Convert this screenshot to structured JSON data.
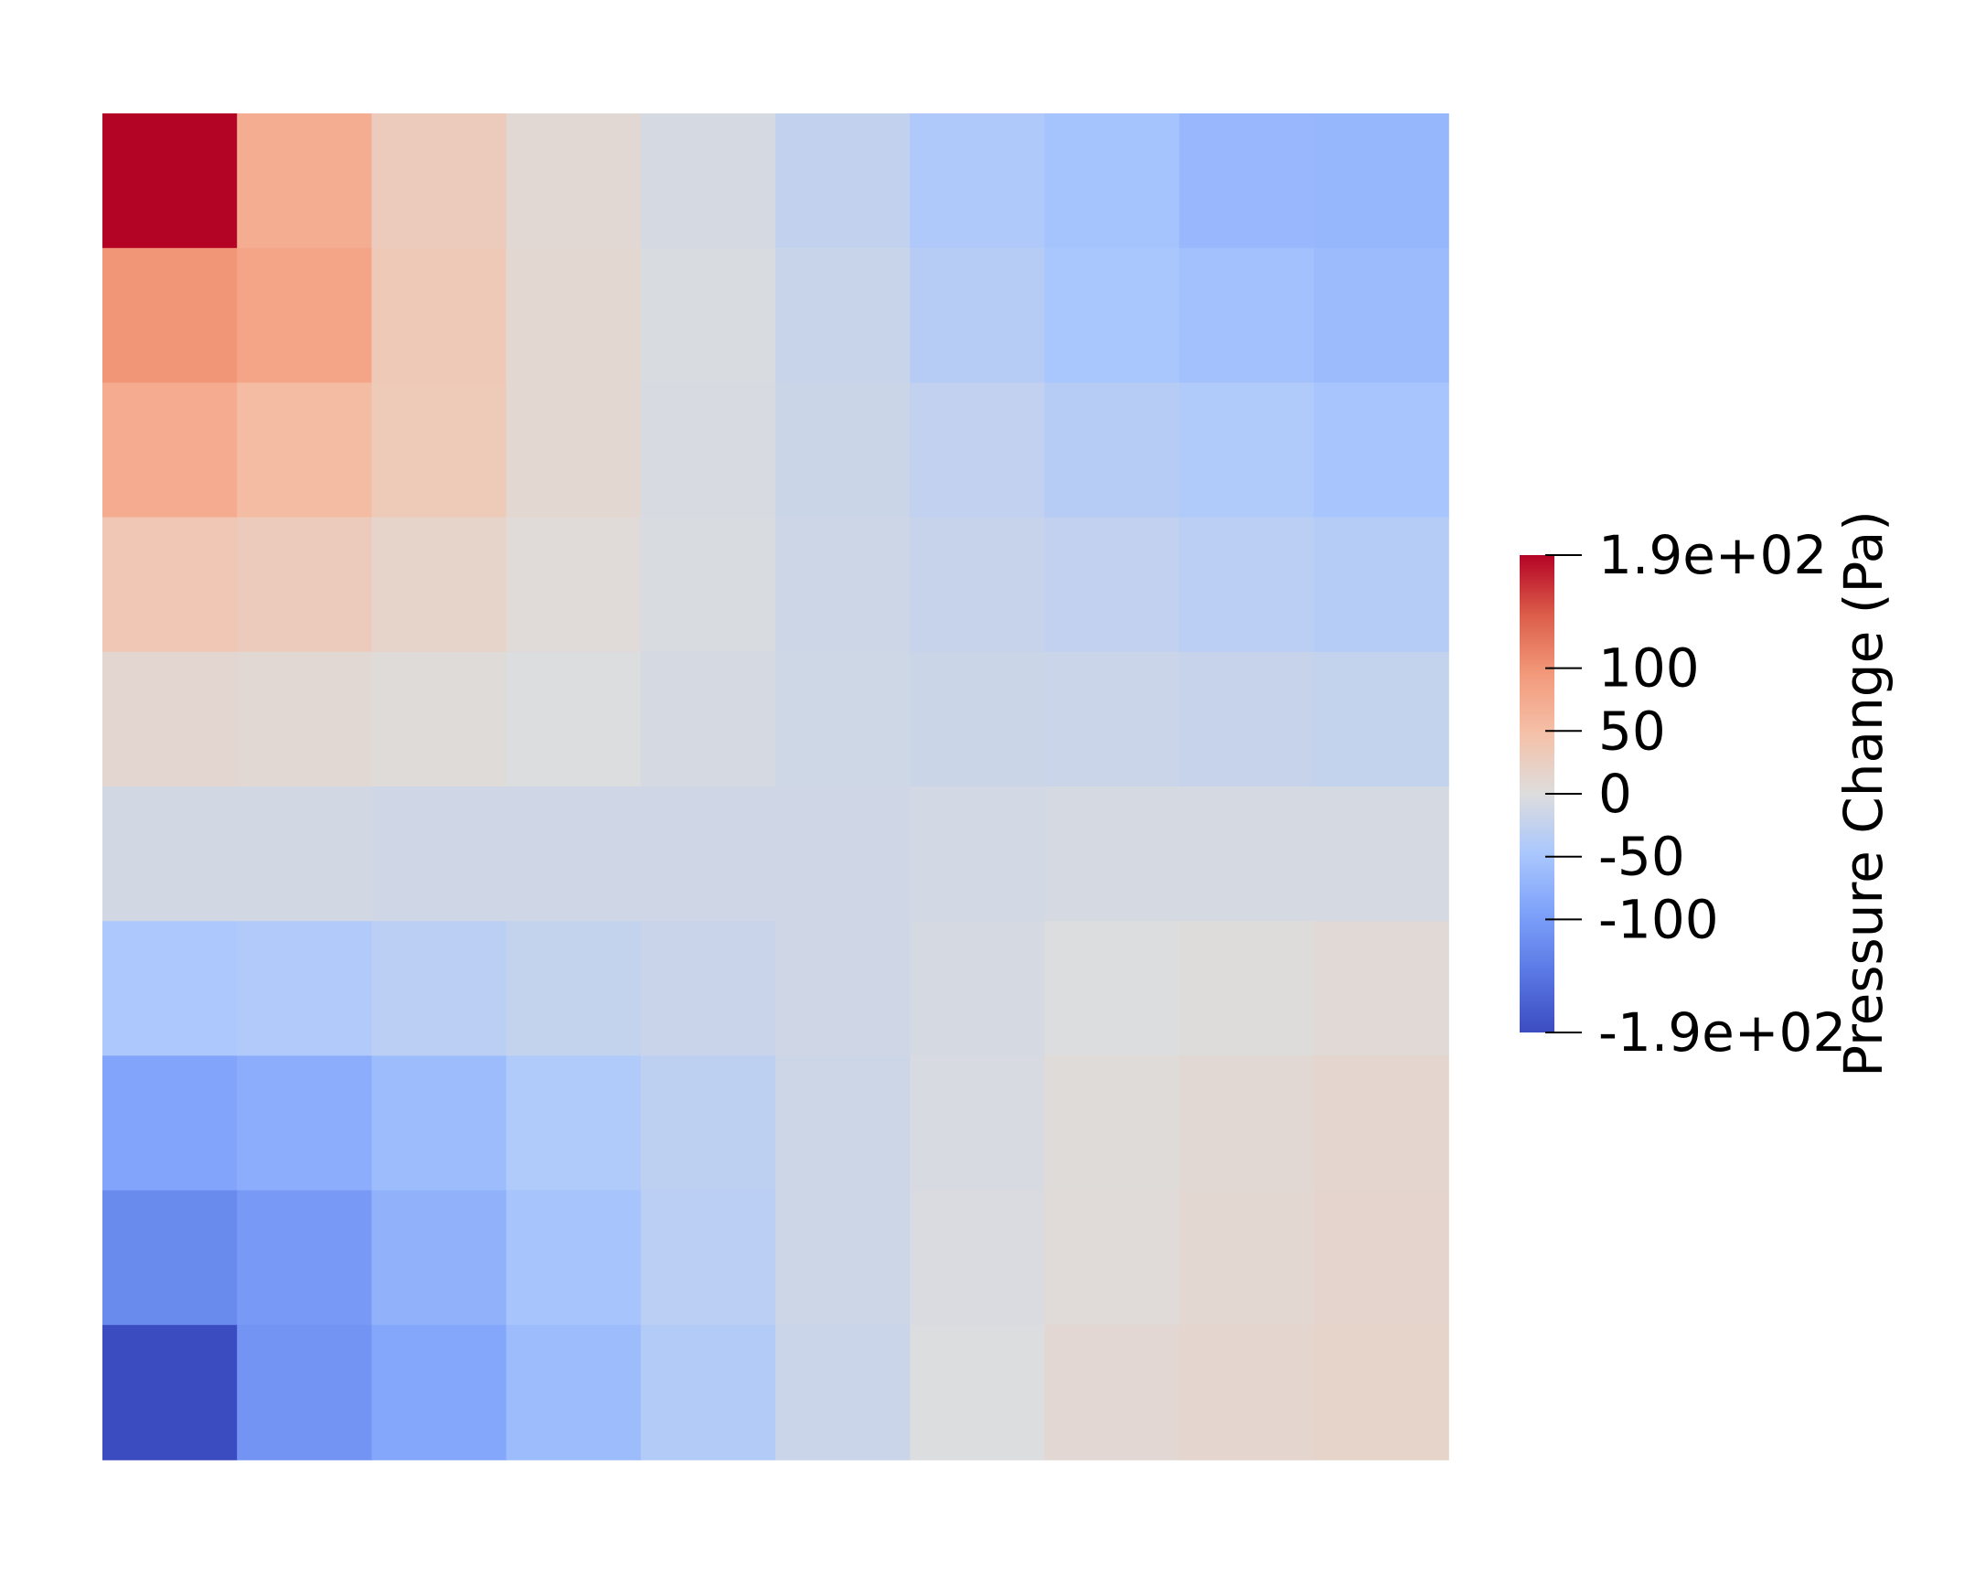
{
  "chart_data": {
    "type": "heatmap",
    "rows": 10,
    "cols": 10,
    "values": [
      [
        190,
        72,
        30,
        9,
        -8,
        -25,
        -43,
        -53,
        -67,
        -68
      ],
      [
        98,
        82,
        34,
        11,
        -5,
        -20,
        -36,
        -49,
        -55,
        -63
      ],
      [
        74,
        53,
        33,
        11,
        -6,
        -17,
        -26,
        -36,
        -42,
        -50
      ],
      [
        37,
        30,
        17,
        5,
        -5,
        -15,
        -21,
        -26,
        -32,
        -37
      ],
      [
        12,
        9,
        4,
        -1,
        -7,
        -14,
        -17,
        -18,
        -21,
        -24
      ],
      [
        -11,
        -11,
        -13,
        -13,
        -13,
        -13,
        -10,
        -8,
        -7,
        -7
      ],
      [
        -46,
        -41,
        -32,
        -24,
        -19,
        -13,
        -8,
        -1,
        2,
        6
      ],
      [
        -91,
        -80,
        -61,
        -42,
        -29,
        -15,
        -6,
        4,
        8,
        14
      ],
      [
        -121,
        -103,
        -74,
        -51,
        -32,
        -15,
        -4,
        5,
        11,
        15
      ],
      [
        -190,
        -110,
        -87,
        -61,
        -39,
        -18,
        -1,
        10,
        14,
        17
      ]
    ],
    "colorbar": {
      "title": "Pressure Change (Pa)",
      "min": -190,
      "max": 190,
      "ticks": [
        {
          "value": 190,
          "label": "1.9e+02"
        },
        {
          "value": 100,
          "label": "100"
        },
        {
          "value": 50,
          "label": "50"
        },
        {
          "value": 0,
          "label": "0"
        },
        {
          "value": -50,
          "label": "-50"
        },
        {
          "value": -100,
          "label": "-100"
        },
        {
          "value": -190,
          "label": "-1.9e+02"
        }
      ],
      "colormap": "Cool to Warm",
      "color_stops": [
        "#3b4cc0",
        "#dddddd",
        "#b40426"
      ]
    }
  }
}
